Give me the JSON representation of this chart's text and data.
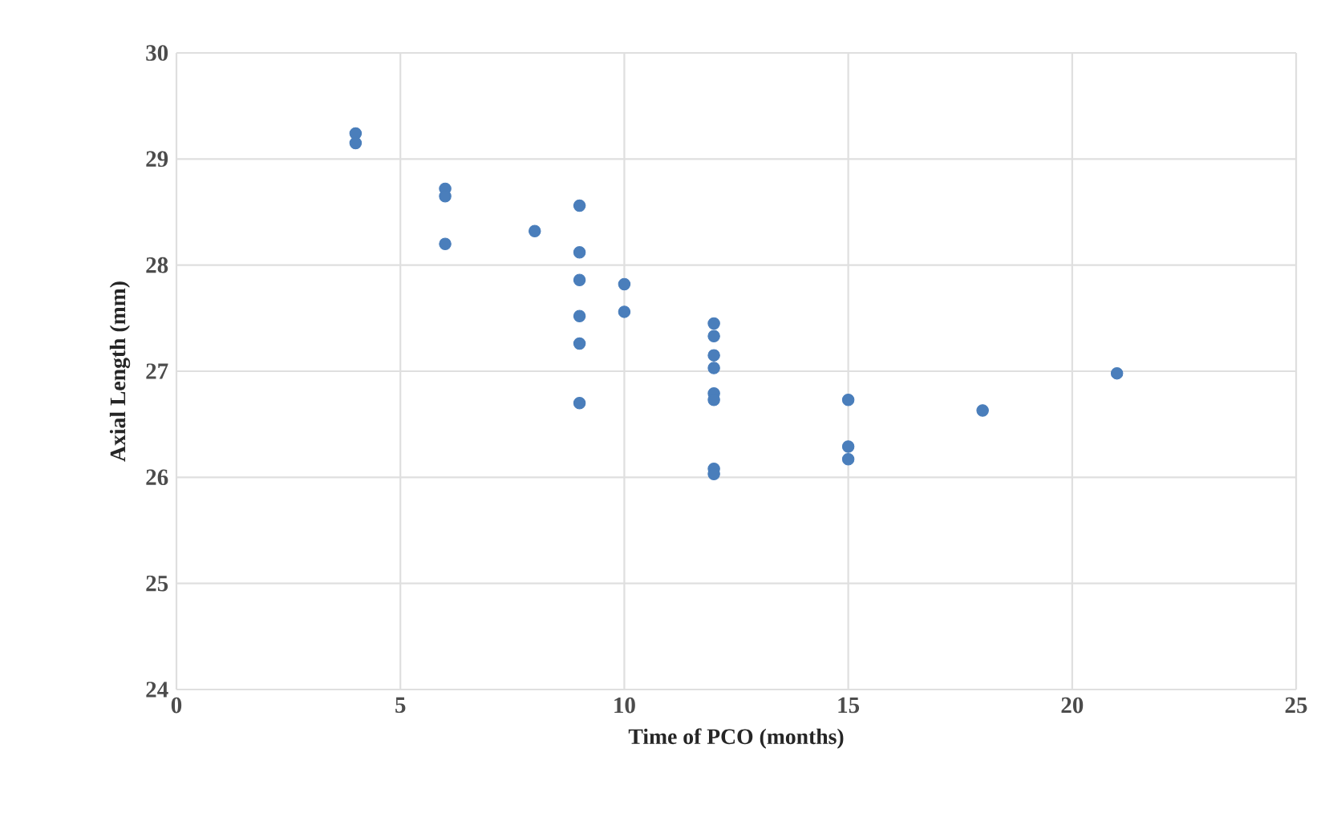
{
  "chart_data": {
    "type": "scatter",
    "xlabel": "Time of PCO (months)",
    "ylabel": "Axial Length (mm)",
    "x": [
      4,
      4,
      6,
      6,
      6,
      8,
      9,
      9,
      9,
      9,
      9,
      9,
      10,
      10,
      12,
      12,
      12,
      12,
      12,
      12,
      12,
      12,
      15,
      15,
      15,
      18,
      21
    ],
    "values": [
      29.24,
      29.15,
      28.72,
      28.65,
      28.2,
      28.32,
      28.56,
      28.12,
      27.86,
      27.52,
      27.26,
      26.7,
      27.82,
      27.56,
      27.45,
      27.33,
      27.15,
      27.03,
      26.79,
      26.73,
      26.08,
      26.03,
      26.73,
      26.29,
      26.17,
      26.63,
      26.98
    ],
    "color": "#4a7ebb",
    "marker": "circle",
    "grid": true,
    "xlim": [
      0,
      25
    ],
    "xticks": [
      0,
      5,
      10,
      15,
      20,
      25
    ],
    "ylim": [
      24,
      30
    ],
    "yticks": [
      24,
      25,
      26,
      27,
      28,
      29,
      30
    ]
  }
}
